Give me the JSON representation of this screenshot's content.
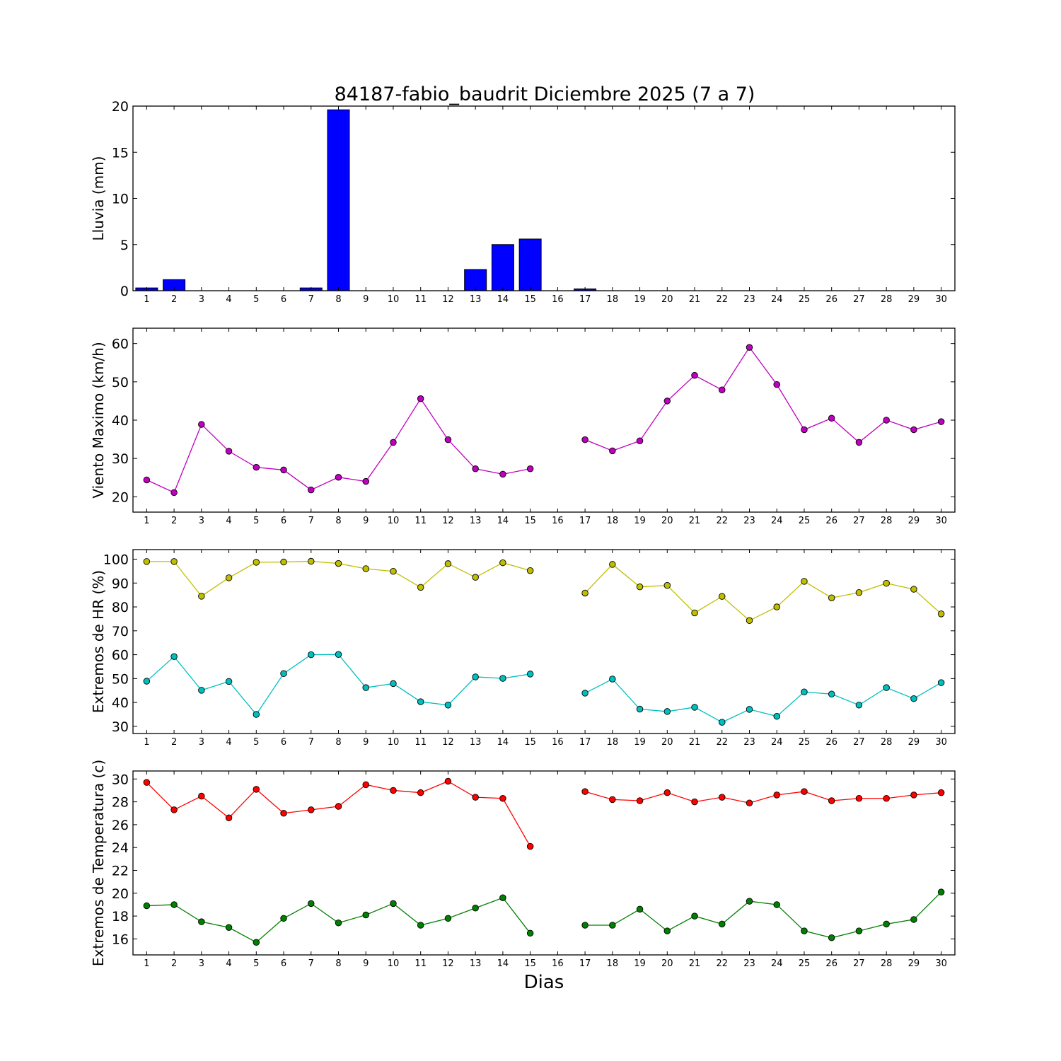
{
  "figure": {
    "title": "84187-fabio_baudrit Diciembre 2025  (7 a 7)",
    "xlabel": "Dias"
  },
  "chart_data": [
    {
      "type": "bar",
      "ylabel": "Lluvia (mm)",
      "xlim": [
        0.5,
        30.5
      ],
      "ylim": [
        0,
        20
      ],
      "yticks": [
        0,
        5,
        10,
        15,
        20
      ],
      "xticks": [
        1,
        2,
        3,
        4,
        5,
        6,
        7,
        8,
        9,
        10,
        11,
        12,
        13,
        14,
        15,
        16,
        17,
        18,
        19,
        20,
        21,
        22,
        23,
        24,
        25,
        26,
        27,
        28,
        29,
        30
      ],
      "grid": false,
      "series": [
        {
          "color": "#0000ff",
          "x": [
            1,
            2,
            3,
            4,
            5,
            6,
            7,
            8,
            9,
            10,
            11,
            12,
            13,
            14,
            15,
            16,
            17,
            18,
            19,
            20,
            21,
            22,
            23,
            24,
            25,
            26,
            27,
            28,
            29,
            30
          ],
          "values": [
            0.3,
            1.2,
            0,
            0,
            0,
            0,
            0.3,
            19.6,
            0,
            0,
            0,
            0,
            2.3,
            5.0,
            5.6,
            null,
            0.2,
            0,
            0,
            0,
            0,
            0,
            0,
            0,
            0,
            0,
            0,
            0,
            0,
            0
          ]
        }
      ]
    },
    {
      "type": "line",
      "ylabel": "Viento Maximo (km/h)",
      "xlim": [
        0.5,
        30.5
      ],
      "ylim": [
        16,
        64
      ],
      "yticks": [
        20,
        30,
        40,
        50,
        60
      ],
      "xticks": [
        1,
        2,
        3,
        4,
        5,
        6,
        7,
        8,
        9,
        10,
        11,
        12,
        13,
        14,
        15,
        16,
        17,
        18,
        19,
        20,
        21,
        22,
        23,
        24,
        25,
        26,
        27,
        28,
        29,
        30
      ],
      "grid": false,
      "series": [
        {
          "color": "#bf00bf",
          "x": [
            1,
            2,
            3,
            4,
            5,
            6,
            7,
            8,
            9,
            10,
            11,
            12,
            13,
            14,
            15,
            16,
            17,
            18,
            19,
            20,
            21,
            22,
            23,
            24,
            25,
            26,
            27,
            28,
            29,
            30
          ],
          "values": [
            24.4,
            21.1,
            38.9,
            31.9,
            27.7,
            27.0,
            21.8,
            25.1,
            24.0,
            34.2,
            45.6,
            34.9,
            27.3,
            25.9,
            27.3,
            null,
            34.9,
            32.0,
            34.6,
            45.0,
            51.7,
            47.9,
            59.0,
            49.3,
            37.5,
            40.5,
            34.2,
            40.0,
            37.5,
            39.6
          ]
        }
      ]
    },
    {
      "type": "line",
      "ylabel": "Extremos de HR (%)",
      "xlim": [
        0.5,
        30.5
      ],
      "ylim": [
        27,
        104
      ],
      "yticks": [
        30,
        40,
        50,
        60,
        70,
        80,
        90,
        100
      ],
      "xticks": [
        1,
        2,
        3,
        4,
        5,
        6,
        7,
        8,
        9,
        10,
        11,
        12,
        13,
        14,
        15,
        16,
        17,
        18,
        19,
        20,
        21,
        22,
        23,
        24,
        25,
        26,
        27,
        28,
        29,
        30
      ],
      "grid": false,
      "series": [
        {
          "color": "#bfbf00",
          "x": [
            1,
            2,
            3,
            4,
            5,
            6,
            7,
            8,
            9,
            10,
            11,
            12,
            13,
            14,
            15,
            16,
            17,
            18,
            19,
            20,
            21,
            22,
            23,
            24,
            25,
            26,
            27,
            28,
            29,
            30
          ],
          "values": [
            99.0,
            99.0,
            84.5,
            92.2,
            98.7,
            98.8,
            99.1,
            98.2,
            96.0,
            94.9,
            88.2,
            98.1,
            92.4,
            98.5,
            95.2,
            null,
            85.8,
            97.8,
            88.4,
            89.0,
            77.5,
            84.4,
            74.3,
            80.0,
            90.7,
            83.8,
            86.0,
            89.9,
            87.4,
            77.1
          ]
        },
        {
          "color": "#00bfbf",
          "x": [
            1,
            2,
            3,
            4,
            5,
            6,
            7,
            8,
            9,
            10,
            11,
            12,
            13,
            14,
            15,
            16,
            17,
            18,
            19,
            20,
            21,
            22,
            23,
            24,
            25,
            26,
            27,
            28,
            29,
            30
          ],
          "values": [
            48.9,
            59.2,
            45.1,
            48.8,
            35.0,
            52.1,
            60.0,
            60.1,
            46.2,
            47.9,
            40.3,
            38.9,
            50.7,
            50.1,
            51.9,
            null,
            43.9,
            49.8,
            37.2,
            36.2,
            38.0,
            31.7,
            37.1,
            34.2,
            44.4,
            43.5,
            38.9,
            46.2,
            41.6,
            48.3
          ]
        }
      ]
    },
    {
      "type": "line",
      "ylabel": "Extremos de Temperatura (c)",
      "xlim": [
        0.5,
        30.5
      ],
      "ylim": [
        14.6,
        30.7
      ],
      "yticks": [
        16,
        18,
        20,
        22,
        24,
        26,
        28,
        30
      ],
      "xticks": [
        1,
        2,
        3,
        4,
        5,
        6,
        7,
        8,
        9,
        10,
        11,
        12,
        13,
        14,
        15,
        16,
        17,
        18,
        19,
        20,
        21,
        22,
        23,
        24,
        25,
        26,
        27,
        28,
        29,
        30
      ],
      "grid": false,
      "series": [
        {
          "color": "#ff0000",
          "x": [
            1,
            2,
            3,
            4,
            5,
            6,
            7,
            8,
            9,
            10,
            11,
            12,
            13,
            14,
            15,
            16,
            17,
            18,
            19,
            20,
            21,
            22,
            23,
            24,
            25,
            26,
            27,
            28,
            29,
            30
          ],
          "values": [
            29.7,
            27.3,
            28.5,
            26.6,
            29.1,
            27.0,
            27.3,
            27.6,
            29.5,
            29.0,
            28.8,
            29.8,
            28.4,
            28.3,
            24.1,
            null,
            28.9,
            28.2,
            28.1,
            28.8,
            28.0,
            28.4,
            27.9,
            28.6,
            28.9,
            28.1,
            28.3,
            28.3,
            28.6,
            28.8
          ]
        },
        {
          "color": "#008000",
          "x": [
            1,
            2,
            3,
            4,
            5,
            6,
            7,
            8,
            9,
            10,
            11,
            12,
            13,
            14,
            15,
            16,
            17,
            18,
            19,
            20,
            21,
            22,
            23,
            24,
            25,
            26,
            27,
            28,
            29,
            30
          ],
          "values": [
            18.9,
            19.0,
            17.5,
            17.0,
            15.7,
            17.8,
            19.1,
            17.4,
            18.1,
            19.1,
            17.2,
            17.8,
            18.7,
            19.6,
            16.5,
            null,
            17.2,
            17.2,
            18.6,
            16.7,
            18.0,
            17.3,
            19.3,
            19.0,
            16.7,
            16.1,
            16.7,
            17.3,
            17.7,
            20.1
          ]
        }
      ]
    }
  ]
}
